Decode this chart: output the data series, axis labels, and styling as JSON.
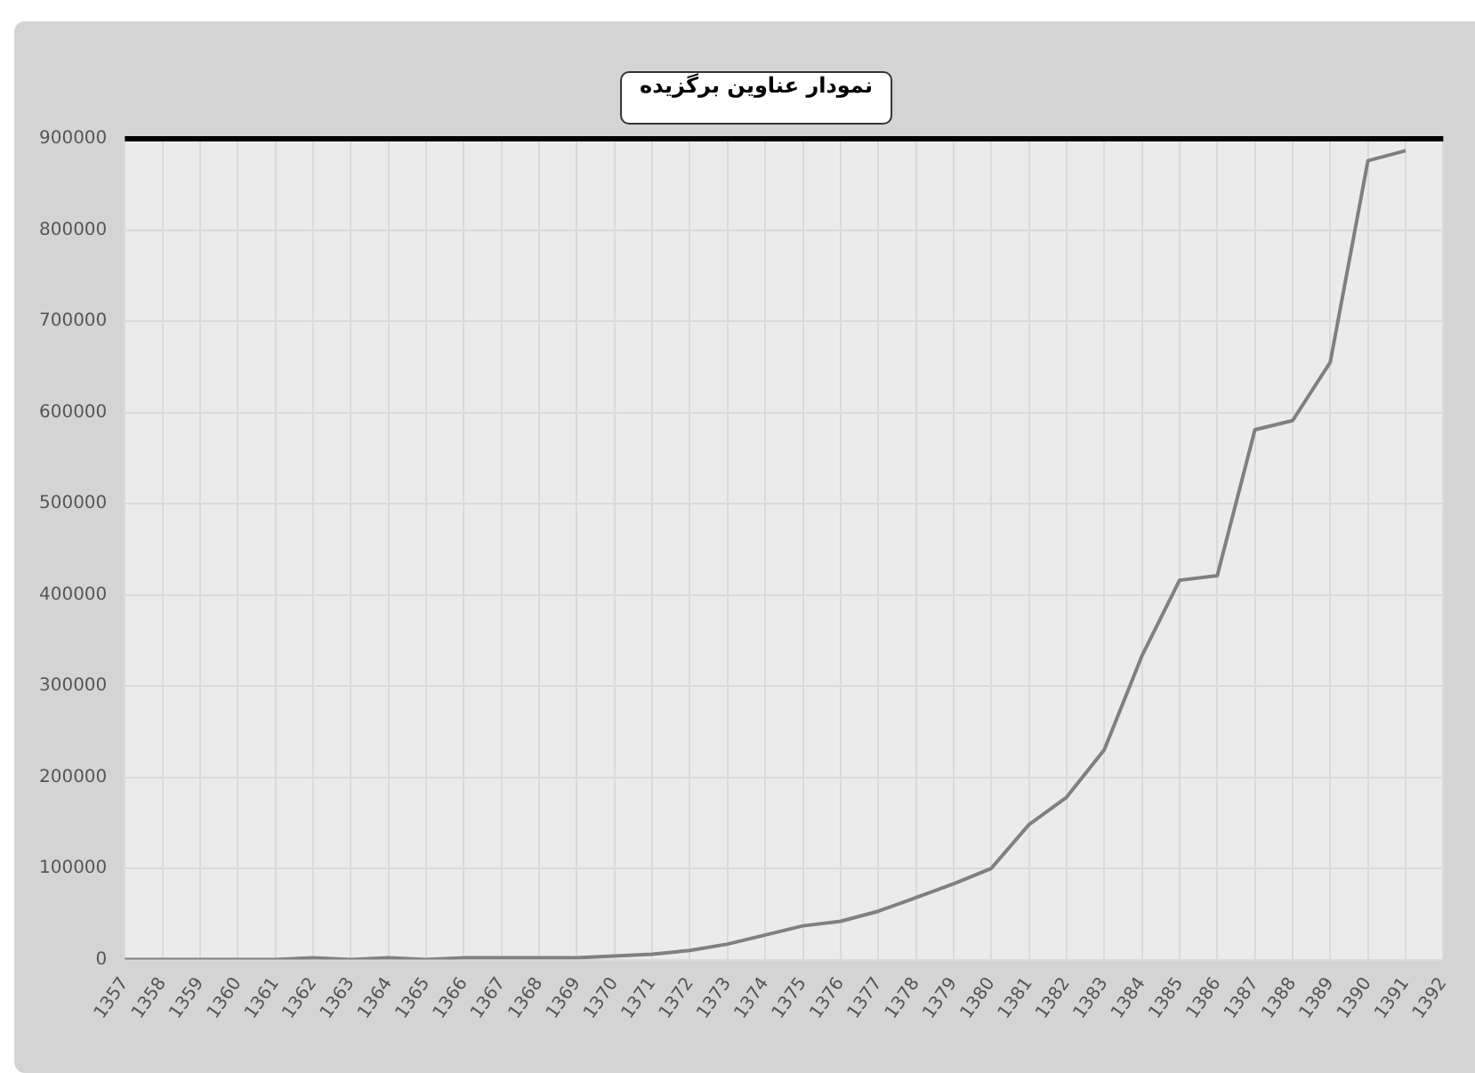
{
  "chart_data": {
    "type": "line",
    "title": "نمودار عناوین برگزیده",
    "categories": [
      "1357",
      "1358",
      "1359",
      "1360",
      "1361",
      "1362",
      "1363",
      "1364",
      "1365",
      "1366",
      "1367",
      "1368",
      "1369",
      "1370",
      "1371",
      "1372",
      "1373",
      "1374",
      "1375",
      "1376",
      "1377",
      "1378",
      "1379",
      "1380",
      "1381",
      "1382",
      "1383",
      "1384",
      "1385",
      "1386",
      "1387",
      "1388",
      "1389",
      "1390",
      "1391",
      "1392"
    ],
    "series": [
      {
        "color": "#808080",
        "values": [
          0,
          0,
          0,
          0,
          0,
          2000,
          0,
          2000,
          0,
          2000,
          2000,
          2000,
          2000,
          4000,
          6000,
          10000,
          17000,
          27000,
          37000,
          42000,
          53000,
          68000,
          83000,
          100000,
          148000,
          178000,
          230000,
          333000,
          416000,
          421000,
          581000,
          591000,
          655000,
          876000,
          887000,
          null
        ]
      }
    ],
    "ylim": [
      0,
      900000
    ],
    "yticks": [
      0,
      100000,
      200000,
      300000,
      400000,
      500000,
      600000,
      700000,
      800000,
      900000
    ],
    "grid": true,
    "legend": false,
    "marker": "none",
    "line_style": "solid"
  }
}
